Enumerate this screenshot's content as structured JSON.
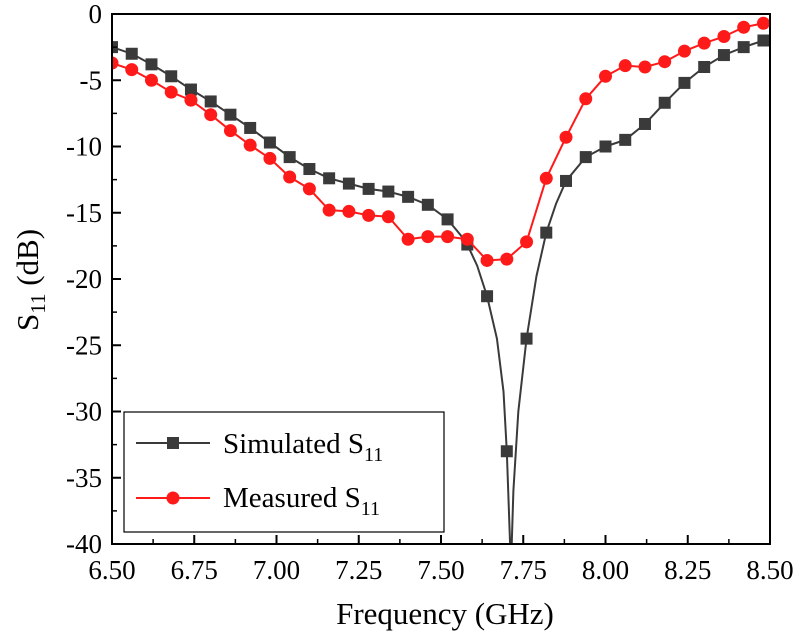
{
  "chart_data": {
    "type": "line",
    "title": "",
    "xlabel": "Frequency (GHz)",
    "ylabel_main": "S",
    "ylabel_sub": "11",
    "ylabel_unit": " (dB)",
    "xlim": [
      6.5,
      8.5
    ],
    "ylim": [
      -40,
      0
    ],
    "grid": false,
    "legend_position": "bottom-left",
    "x_ticks": [
      6.5,
      6.75,
      7.0,
      7.25,
      7.5,
      7.75,
      8.0,
      8.25,
      8.5
    ],
    "x_tick_labels": [
      "6.50",
      "6.75",
      "7.00",
      "7.25",
      "7.50",
      "7.75",
      "8.00",
      "8.25",
      "8.50"
    ],
    "y_ticks": [
      0,
      -5,
      -10,
      -15,
      -20,
      -25,
      -30,
      -35,
      -40
    ],
    "y_tick_labels": [
      "0",
      "-5",
      "-10",
      "-15",
      "-20",
      "-25",
      "-30",
      "-35",
      "-40"
    ],
    "series": [
      {
        "name": "Simulated S11",
        "label_main": "Simulated S",
        "label_sub": "11",
        "color": "#3a3a3a",
        "marker": "square",
        "x": [
          6.5,
          6.56,
          6.62,
          6.68,
          6.74,
          6.8,
          6.86,
          6.92,
          6.98,
          7.04,
          7.1,
          7.16,
          7.22,
          7.28,
          7.34,
          7.4,
          7.46,
          7.52,
          7.58,
          7.64,
          7.7,
          7.76,
          7.82,
          7.88,
          7.94,
          8.0,
          8.06,
          8.12,
          8.18,
          8.24,
          8.3,
          8.36,
          8.42,
          8.48
        ],
        "y": [
          -2.5,
          -3.0,
          -3.8,
          -4.7,
          -5.7,
          -6.6,
          -7.6,
          -8.6,
          -9.7,
          -10.8,
          -11.7,
          -12.4,
          -12.8,
          -13.2,
          -13.4,
          -13.8,
          -14.4,
          -15.5,
          -17.4,
          -21.3,
          -33.0,
          -24.5,
          -16.5,
          -12.6,
          -10.8,
          -10.0,
          -9.5,
          -8.3,
          -6.7,
          -5.2,
          -4.0,
          -3.1,
          -2.5,
          -2.0
        ],
        "curve_x": [
          6.5,
          6.56,
          6.62,
          6.68,
          6.74,
          6.8,
          6.86,
          6.92,
          6.98,
          7.04,
          7.1,
          7.16,
          7.22,
          7.28,
          7.34,
          7.4,
          7.46,
          7.52,
          7.56,
          7.58,
          7.61,
          7.64,
          7.67,
          7.69,
          7.7,
          7.705,
          7.71,
          7.715,
          7.72,
          7.735,
          7.76,
          7.79,
          7.82,
          7.85,
          7.88,
          7.94,
          8.0,
          8.06,
          8.12,
          8.18,
          8.24,
          8.3,
          8.36,
          8.42,
          8.48,
          8.5
        ],
        "curve_y": [
          -2.5,
          -3.0,
          -3.8,
          -4.7,
          -5.7,
          -6.6,
          -7.6,
          -8.6,
          -9.7,
          -10.8,
          -11.7,
          -12.4,
          -12.8,
          -13.2,
          -13.4,
          -13.8,
          -14.4,
          -15.5,
          -16.7,
          -17.4,
          -19.0,
          -21.3,
          -24.5,
          -28.5,
          -33.0,
          -36.5,
          -40.0,
          -40.0,
          -36.0,
          -30.0,
          -24.5,
          -19.8,
          -16.5,
          -14.3,
          -12.6,
          -10.8,
          -10.0,
          -9.5,
          -8.3,
          -6.7,
          -5.2,
          -4.0,
          -3.1,
          -2.5,
          -2.0,
          -1.9
        ]
      },
      {
        "name": "Measured S11",
        "label_main": "Measured S",
        "label_sub": "11",
        "color": "#ff1a1a",
        "marker": "circle",
        "x": [
          6.5,
          6.56,
          6.62,
          6.68,
          6.74,
          6.8,
          6.86,
          6.92,
          6.98,
          7.04,
          7.1,
          7.16,
          7.22,
          7.28,
          7.34,
          7.4,
          7.46,
          7.52,
          7.58,
          7.64,
          7.7,
          7.76,
          7.82,
          7.88,
          7.94,
          8.0,
          8.06,
          8.12,
          8.18,
          8.24,
          8.3,
          8.36,
          8.42,
          8.48
        ],
        "y": [
          -3.7,
          -4.2,
          -5.0,
          -5.9,
          -6.5,
          -7.6,
          -8.8,
          -9.9,
          -10.9,
          -12.3,
          -13.2,
          -14.8,
          -14.9,
          -15.2,
          -15.3,
          -17.0,
          -16.8,
          -16.8,
          -17.0,
          -18.6,
          -18.5,
          -17.2,
          -12.4,
          -9.3,
          -6.4,
          -4.7,
          -3.9,
          -4.0,
          -3.6,
          -2.8,
          -2.2,
          -1.7,
          -1.0,
          -0.7
        ]
      }
    ]
  }
}
